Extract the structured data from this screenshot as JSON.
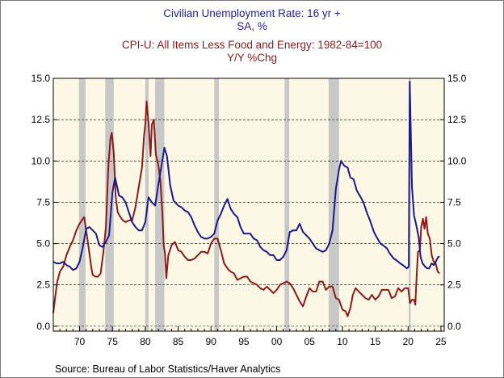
{
  "chart_data": {
    "type": "line",
    "titles": [
      {
        "text": "Civilian Unemployment Rate: 16 yr +",
        "color": "#1f1f8f"
      },
      {
        "text": "SA, %",
        "color": "#1f1f8f"
      },
      {
        "text": "CPI-U: All Items Less Food and Energy: 1982-84=100",
        "color": "#8b1a1a"
      },
      {
        "text": "Y/Y %Chg",
        "color": "#8b1a1a"
      }
    ],
    "source": "Source:  Bureau of Labor Statistics/Haver Analytics",
    "xlim": [
      1966,
      2025.5
    ],
    "ylim": [
      -0.3,
      15.0
    ],
    "x_ticks": [
      {
        "value": 1970,
        "label": "70"
      },
      {
        "value": 1975,
        "label": "75"
      },
      {
        "value": 1980,
        "label": "80"
      },
      {
        "value": 1985,
        "label": "85"
      },
      {
        "value": 1990,
        "label": "90"
      },
      {
        "value": 1995,
        "label": "95"
      },
      {
        "value": 2000,
        "label": "00"
      },
      {
        "value": 2005,
        "label": "05"
      },
      {
        "value": 2010,
        "label": "10"
      },
      {
        "value": 2015,
        "label": "15"
      },
      {
        "value": 2020,
        "label": "20"
      },
      {
        "value": 2025,
        "label": "25"
      }
    ],
    "y_ticks": [
      {
        "value": 0.0,
        "label": "0.0"
      },
      {
        "value": 2.5,
        "label": "2.5"
      },
      {
        "value": 5.0,
        "label": "5.0"
      },
      {
        "value": 7.5,
        "label": "7.5"
      },
      {
        "value": 10.0,
        "label": "10.0"
      },
      {
        "value": 12.5,
        "label": "12.5"
      },
      {
        "value": 15.0,
        "label": "15.0"
      }
    ],
    "gridlines": "horizontal dashed",
    "recessions": [
      [
        1969.9,
        1970.9
      ],
      [
        1973.9,
        1975.2
      ],
      [
        1980.0,
        1980.5
      ],
      [
        1981.5,
        1982.9
      ],
      [
        1990.5,
        1991.2
      ],
      [
        2001.2,
        2001.9
      ],
      [
        2007.9,
        2009.5
      ],
      [
        2020.1,
        2020.4
      ]
    ],
    "colors": {
      "plot_background": "#fdf8e6",
      "recession_shade": "#c8c8c8",
      "unemployment": "#1a1a8c",
      "core_cpi": "#8b1a1a",
      "gridline": "#000000"
    },
    "series": [
      {
        "key": "unemployment",
        "points": [
          [
            1966.0,
            3.9
          ],
          [
            1966.5,
            3.8
          ],
          [
            1967.0,
            3.8
          ],
          [
            1967.5,
            3.9
          ],
          [
            1968.0,
            3.7
          ],
          [
            1968.5,
            3.6
          ],
          [
            1969.0,
            3.4
          ],
          [
            1969.5,
            3.5
          ],
          [
            1970.0,
            3.9
          ],
          [
            1970.5,
            4.8
          ],
          [
            1971.0,
            5.9
          ],
          [
            1971.5,
            6.0
          ],
          [
            1972.0,
            5.8
          ],
          [
            1972.5,
            5.6
          ],
          [
            1973.0,
            4.9
          ],
          [
            1973.5,
            4.8
          ],
          [
            1974.0,
            5.1
          ],
          [
            1974.5,
            5.5
          ],
          [
            1975.0,
            8.1
          ],
          [
            1975.4,
            9.0
          ],
          [
            1975.8,
            8.3
          ],
          [
            1976.0,
            7.9
          ],
          [
            1976.5,
            7.8
          ],
          [
            1977.0,
            7.5
          ],
          [
            1977.5,
            6.9
          ],
          [
            1978.0,
            6.3
          ],
          [
            1978.5,
            6.0
          ],
          [
            1979.0,
            5.8
          ],
          [
            1979.5,
            5.8
          ],
          [
            1980.0,
            6.3
          ],
          [
            1980.5,
            7.8
          ],
          [
            1981.0,
            7.5
          ],
          [
            1981.5,
            7.3
          ],
          [
            1982.0,
            8.6
          ],
          [
            1982.5,
            9.8
          ],
          [
            1982.9,
            10.8
          ],
          [
            1983.3,
            10.3
          ],
          [
            1983.8,
            8.5
          ],
          [
            1984.3,
            7.6
          ],
          [
            1985.0,
            7.3
          ],
          [
            1985.5,
            7.2
          ],
          [
            1986.0,
            7.0
          ],
          [
            1986.5,
            6.9
          ],
          [
            1987.0,
            6.6
          ],
          [
            1987.5,
            6.1
          ],
          [
            1988.0,
            5.7
          ],
          [
            1988.5,
            5.4
          ],
          [
            1989.0,
            5.3
          ],
          [
            1989.5,
            5.3
          ],
          [
            1990.0,
            5.4
          ],
          [
            1990.5,
            5.6
          ],
          [
            1991.0,
            6.4
          ],
          [
            1991.5,
            6.8
          ],
          [
            1992.0,
            7.3
          ],
          [
            1992.5,
            7.7
          ],
          [
            1993.0,
            7.1
          ],
          [
            1993.5,
            6.8
          ],
          [
            1994.0,
            6.6
          ],
          [
            1994.5,
            6.0
          ],
          [
            1995.0,
            5.6
          ],
          [
            1995.5,
            5.6
          ],
          [
            1996.0,
            5.6
          ],
          [
            1996.5,
            5.3
          ],
          [
            1997.0,
            5.2
          ],
          [
            1997.5,
            4.8
          ],
          [
            1998.0,
            4.6
          ],
          [
            1998.5,
            4.5
          ],
          [
            1999.0,
            4.3
          ],
          [
            1999.5,
            4.3
          ],
          [
            2000.0,
            4.0
          ],
          [
            2000.5,
            4.0
          ],
          [
            2001.0,
            4.2
          ],
          [
            2001.5,
            4.6
          ],
          [
            2002.0,
            5.7
          ],
          [
            2002.5,
            5.8
          ],
          [
            2003.0,
            5.8
          ],
          [
            2003.5,
            6.2
          ],
          [
            2004.0,
            5.7
          ],
          [
            2004.5,
            5.5
          ],
          [
            2005.0,
            5.3
          ],
          [
            2005.5,
            5.0
          ],
          [
            2006.0,
            4.7
          ],
          [
            2006.5,
            4.6
          ],
          [
            2007.0,
            4.5
          ],
          [
            2007.5,
            4.6
          ],
          [
            2008.0,
            5.0
          ],
          [
            2008.5,
            5.8
          ],
          [
            2009.0,
            8.3
          ],
          [
            2009.5,
            9.5
          ],
          [
            2009.8,
            10.0
          ],
          [
            2010.3,
            9.7
          ],
          [
            2010.8,
            9.6
          ],
          [
            2011.2,
            9.0
          ],
          [
            2011.7,
            8.9
          ],
          [
            2012.2,
            8.2
          ],
          [
            2012.8,
            7.8
          ],
          [
            2013.2,
            7.5
          ],
          [
            2013.8,
            6.8
          ],
          [
            2014.2,
            6.4
          ],
          [
            2014.8,
            5.7
          ],
          [
            2015.2,
            5.4
          ],
          [
            2015.8,
            5.0
          ],
          [
            2016.2,
            4.9
          ],
          [
            2016.8,
            4.7
          ],
          [
            2017.2,
            4.4
          ],
          [
            2017.8,
            4.1
          ],
          [
            2018.2,
            4.0
          ],
          [
            2018.8,
            3.8
          ],
          [
            2019.2,
            3.7
          ],
          [
            2019.8,
            3.5
          ],
          [
            2020.1,
            3.6
          ],
          [
            2020.25,
            14.8
          ],
          [
            2020.45,
            11.1
          ],
          [
            2020.6,
            8.4
          ],
          [
            2020.9,
            6.7
          ],
          [
            2021.2,
            6.2
          ],
          [
            2021.6,
            5.4
          ],
          [
            2021.9,
            4.2
          ],
          [
            2022.2,
            3.8
          ],
          [
            2022.6,
            3.6
          ],
          [
            2022.9,
            3.5
          ],
          [
            2023.2,
            3.5
          ],
          [
            2023.6,
            3.8
          ],
          [
            2023.9,
            3.7
          ],
          [
            2024.2,
            3.9
          ],
          [
            2024.6,
            4.2
          ],
          [
            2024.8,
            4.2
          ]
        ]
      },
      {
        "key": "core_cpi",
        "points": [
          [
            1966.0,
            0.8
          ],
          [
            1966.3,
            1.8
          ],
          [
            1966.6,
            2.7
          ],
          [
            1967.0,
            3.3
          ],
          [
            1967.5,
            3.6
          ],
          [
            1968.0,
            4.3
          ],
          [
            1968.5,
            4.8
          ],
          [
            1969.0,
            5.2
          ],
          [
            1969.5,
            5.8
          ],
          [
            1970.0,
            6.2
          ],
          [
            1970.5,
            6.5
          ],
          [
            1970.7,
            6.6
          ],
          [
            1971.0,
            5.8
          ],
          [
            1971.5,
            4.4
          ],
          [
            1971.8,
            3.5
          ],
          [
            1972.0,
            3.1
          ],
          [
            1972.4,
            3.0
          ],
          [
            1972.8,
            3.0
          ],
          [
            1973.2,
            3.2
          ],
          [
            1973.6,
            4.4
          ],
          [
            1974.0,
            6.0
          ],
          [
            1974.4,
            9.8
          ],
          [
            1974.7,
            11.4
          ],
          [
            1974.9,
            11.7
          ],
          [
            1975.2,
            10.5
          ],
          [
            1975.5,
            7.8
          ],
          [
            1975.8,
            6.9
          ],
          [
            1976.2,
            6.6
          ],
          [
            1976.6,
            6.4
          ],
          [
            1977.0,
            6.3
          ],
          [
            1977.5,
            6.4
          ],
          [
            1978.0,
            6.4
          ],
          [
            1978.5,
            7.2
          ],
          [
            1979.0,
            8.4
          ],
          [
            1979.5,
            9.6
          ],
          [
            1979.8,
            11.5
          ],
          [
            1980.0,
            12.2
          ],
          [
            1980.2,
            13.6
          ],
          [
            1980.5,
            12.3
          ],
          [
            1980.8,
            10.3
          ],
          [
            1981.0,
            12.2
          ],
          [
            1981.3,
            12.5
          ],
          [
            1981.6,
            10.4
          ],
          [
            1982.0,
            9.7
          ],
          [
            1982.3,
            8.8
          ],
          [
            1982.6,
            6.9
          ],
          [
            1982.8,
            4.9
          ],
          [
            1983.0,
            4.4
          ],
          [
            1983.2,
            2.9
          ],
          [
            1983.5,
            4.3
          ],
          [
            1984.0,
            4.9
          ],
          [
            1984.5,
            5.1
          ],
          [
            1985.0,
            4.6
          ],
          [
            1985.5,
            4.5
          ],
          [
            1986.0,
            4.2
          ],
          [
            1986.5,
            4.0
          ],
          [
            1987.0,
            4.0
          ],
          [
            1987.5,
            4.1
          ],
          [
            1988.0,
            4.3
          ],
          [
            1988.5,
            4.5
          ],
          [
            1989.0,
            4.5
          ],
          [
            1989.5,
            4.4
          ],
          [
            1990.0,
            5.0
          ],
          [
            1990.5,
            5.3
          ],
          [
            1991.0,
            5.3
          ],
          [
            1991.5,
            4.6
          ],
          [
            1992.0,
            3.8
          ],
          [
            1992.5,
            3.5
          ],
          [
            1993.0,
            3.3
          ],
          [
            1993.5,
            3.2
          ],
          [
            1994.0,
            2.8
          ],
          [
            1994.5,
            2.9
          ],
          [
            1995.0,
            3.0
          ],
          [
            1995.5,
            3.0
          ],
          [
            1996.0,
            2.7
          ],
          [
            1996.5,
            2.6
          ],
          [
            1997.0,
            2.5
          ],
          [
            1997.5,
            2.3
          ],
          [
            1998.0,
            2.2
          ],
          [
            1998.5,
            2.4
          ],
          [
            1999.0,
            2.2
          ],
          [
            1999.5,
            2.0
          ],
          [
            2000.0,
            2.2
          ],
          [
            2000.5,
            2.5
          ],
          [
            2001.0,
            2.6
          ],
          [
            2001.5,
            2.7
          ],
          [
            2002.0,
            2.6
          ],
          [
            2002.5,
            2.3
          ],
          [
            2003.0,
            1.9
          ],
          [
            2003.5,
            1.5
          ],
          [
            2004.0,
            1.2
          ],
          [
            2004.5,
            1.8
          ],
          [
            2005.0,
            2.3
          ],
          [
            2005.5,
            2.1
          ],
          [
            2006.0,
            2.1
          ],
          [
            2006.5,
            2.7
          ],
          [
            2007.0,
            2.7
          ],
          [
            2007.5,
            2.2
          ],
          [
            2008.0,
            2.4
          ],
          [
            2008.5,
            2.4
          ],
          [
            2009.0,
            1.7
          ],
          [
            2009.5,
            1.6
          ],
          [
            2010.0,
            1.0
          ],
          [
            2010.5,
            0.9
          ],
          [
            2010.8,
            0.6
          ],
          [
            2011.2,
            1.1
          ],
          [
            2011.6,
            1.9
          ],
          [
            2012.0,
            2.3
          ],
          [
            2012.5,
            2.1
          ],
          [
            2013.0,
            1.9
          ],
          [
            2013.5,
            1.7
          ],
          [
            2014.0,
            1.6
          ],
          [
            2014.5,
            1.9
          ],
          [
            2015.0,
            1.6
          ],
          [
            2015.5,
            1.8
          ],
          [
            2016.0,
            2.2
          ],
          [
            2016.5,
            2.2
          ],
          [
            2017.0,
            2.2
          ],
          [
            2017.5,
            1.7
          ],
          [
            2018.0,
            1.8
          ],
          [
            2018.5,
            2.3
          ],
          [
            2019.0,
            2.1
          ],
          [
            2019.5,
            2.3
          ],
          [
            2020.0,
            2.3
          ],
          [
            2020.3,
            1.4
          ],
          [
            2020.6,
            1.6
          ],
          [
            2020.9,
            1.6
          ],
          [
            2021.1,
            1.3
          ],
          [
            2021.3,
            3.0
          ],
          [
            2021.5,
            4.5
          ],
          [
            2021.8,
            4.6
          ],
          [
            2022.0,
            6.0
          ],
          [
            2022.25,
            6.5
          ],
          [
            2022.5,
            5.9
          ],
          [
            2022.75,
            6.6
          ],
          [
            2023.0,
            5.6
          ],
          [
            2023.3,
            5.3
          ],
          [
            2023.6,
            4.3
          ],
          [
            2023.9,
            3.9
          ],
          [
            2024.2,
            3.8
          ],
          [
            2024.5,
            3.3
          ],
          [
            2024.8,
            3.2
          ]
        ]
      }
    ]
  }
}
